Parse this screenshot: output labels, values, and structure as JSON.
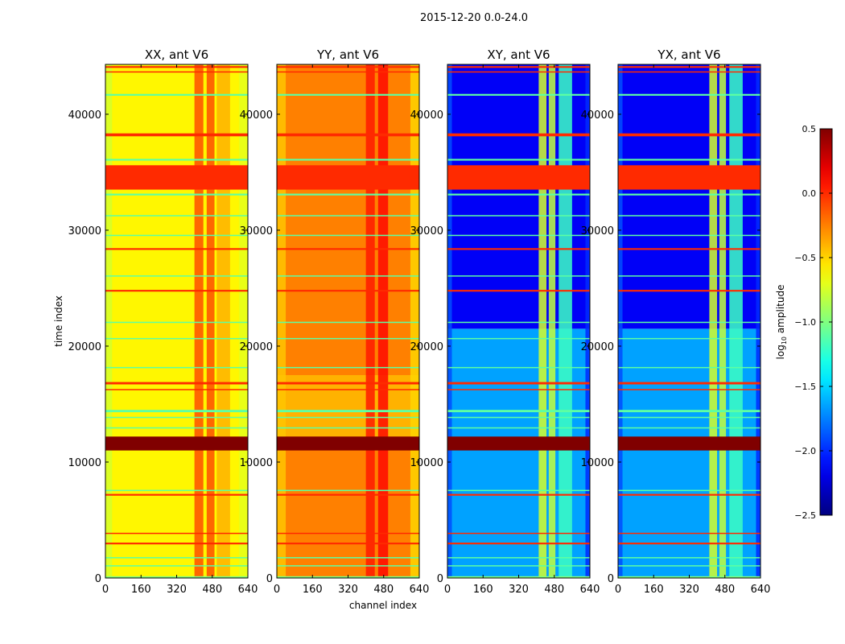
{
  "chart_data": {
    "type": "heatmap",
    "suptitle": "2015-12-20 0.0-24.0",
    "xlabel": "channel index",
    "ylabel": "time index",
    "xlim": [
      0,
      640
    ],
    "ylim": [
      0,
      44300
    ],
    "xticks": [
      "0",
      "160",
      "320",
      "480",
      "640"
    ],
    "xtick_values": [
      0,
      160,
      320,
      480,
      640
    ],
    "yticks": [
      "0",
      "10000",
      "20000",
      "30000",
      "40000"
    ],
    "ytick_values": [
      0,
      10000,
      20000,
      30000,
      40000
    ],
    "colorbar": {
      "label_main": "log",
      "label_sub": "10",
      "label_rest": " amplitude",
      "range": [
        -2.5,
        0.5
      ],
      "colormap": "jet",
      "ticks": [
        "0.5",
        "0.0",
        "−0.5",
        "−1.0",
        "−1.5",
        "−2.0",
        "−2.5"
      ],
      "tick_values": [
        0.5,
        0.0,
        -0.5,
        -1.0,
        -1.5,
        -2.0,
        -2.5
      ]
    },
    "shared_row_bands": [
      {
        "t0": 33500,
        "t1": 35600,
        "value": 0.0
      },
      {
        "t0": 11000,
        "t1": 12200,
        "value": 0.5
      },
      {
        "t0": 44000,
        "t1": 44150,
        "value": 0.0
      },
      {
        "t0": 43600,
        "t1": 43700,
        "value": 0.0
      },
      {
        "t0": 41600,
        "t1": 41750,
        "value": -1.1
      },
      {
        "t0": 38100,
        "t1": 38350,
        "value": 0.0
      },
      {
        "t0": 36000,
        "t1": 36150,
        "value": -1.1
      },
      {
        "t0": 33000,
        "t1": 33150,
        "value": -1.1
      },
      {
        "t0": 31200,
        "t1": 31300,
        "value": -1.1
      },
      {
        "t0": 29500,
        "t1": 29600,
        "value": -1.1
      },
      {
        "t0": 28300,
        "t1": 28450,
        "value": 0.0
      },
      {
        "t0": 26000,
        "t1": 26100,
        "value": -1.1
      },
      {
        "t0": 24700,
        "t1": 24850,
        "value": 0.0
      },
      {
        "t0": 22000,
        "t1": 22100,
        "value": -1.1
      },
      {
        "t0": 20600,
        "t1": 20700,
        "value": -1.1
      },
      {
        "t0": 18100,
        "t1": 18200,
        "value": -1.1
      },
      {
        "t0": 16700,
        "t1": 16900,
        "value": 0.0
      },
      {
        "t0": 16200,
        "t1": 16300,
        "value": 0.0
      },
      {
        "t0": 14300,
        "t1": 14500,
        "value": -1.1
      },
      {
        "t0": 13800,
        "t1": 13900,
        "value": -1.1
      },
      {
        "t0": 12900,
        "t1": 13000,
        "value": -1.1
      },
      {
        "t0": 7500,
        "t1": 7600,
        "value": -1.1
      },
      {
        "t0": 7100,
        "t1": 7250,
        "value": 0.0
      },
      {
        "t0": 3800,
        "t1": 3900,
        "value": 0.0
      },
      {
        "t0": 2900,
        "t1": 3050,
        "value": 0.0
      },
      {
        "t0": 1700,
        "t1": 1800,
        "value": -1.1
      },
      {
        "t0": 1000,
        "t1": 1100,
        "value": -1.1
      },
      {
        "t0": 0,
        "t1": 150,
        "value": -1.0
      }
    ],
    "panels": [
      {
        "title": "XX, ant V6",
        "show_ylabel": true,
        "show_xlabel": false,
        "time_regions": [
          {
            "t0": 0,
            "t1": 44300,
            "value": -0.6
          }
        ],
        "channel_bands": [
          {
            "c0": 0,
            "c1": 30,
            "value": -0.75
          },
          {
            "c0": 400,
            "c1": 440,
            "value": -0.1
          },
          {
            "c0": 455,
            "c1": 490,
            "value": -0.1
          },
          {
            "c0": 500,
            "c1": 560,
            "value": -0.4
          },
          {
            "c0": 600,
            "c1": 640,
            "value": -0.7
          }
        ]
      },
      {
        "title": "YY, ant V6",
        "show_ylabel": false,
        "show_xlabel": true,
        "time_regions": [
          {
            "t0": 0,
            "t1": 44300,
            "value": -0.25
          },
          {
            "t0": 12200,
            "t1": 17500,
            "value": -0.4
          }
        ],
        "channel_bands": [
          {
            "c0": 0,
            "c1": 40,
            "value": -0.45
          },
          {
            "c0": 400,
            "c1": 440,
            "value": 0.05
          },
          {
            "c0": 455,
            "c1": 500,
            "value": 0.1
          },
          {
            "c0": 600,
            "c1": 640,
            "value": -0.5
          }
        ]
      },
      {
        "title": "XY, ant V6",
        "show_ylabel": false,
        "show_xlabel": false,
        "time_regions": [
          {
            "t0": 0,
            "t1": 21500,
            "value": -1.65
          },
          {
            "t0": 21500,
            "t1": 44300,
            "value": -2.15
          }
        ],
        "channel_bands": [
          {
            "c0": 0,
            "c1": 20,
            "value": -1.9
          },
          {
            "c0": 410,
            "c1": 445,
            "value": -0.75
          },
          {
            "c0": 455,
            "c1": 485,
            "value": -0.8
          },
          {
            "c0": 500,
            "c1": 560,
            "value": -1.2
          },
          {
            "c0": 620,
            "c1": 640,
            "value": -2.0
          }
        ]
      },
      {
        "title": "YX, ant V6",
        "show_ylabel": false,
        "show_xlabel": false,
        "time_regions": [
          {
            "t0": 0,
            "t1": 21500,
            "value": -1.65
          },
          {
            "t0": 21500,
            "t1": 44300,
            "value": -2.15
          }
        ],
        "channel_bands": [
          {
            "c0": 0,
            "c1": 20,
            "value": -1.9
          },
          {
            "c0": 410,
            "c1": 445,
            "value": -0.75
          },
          {
            "c0": 455,
            "c1": 485,
            "value": -0.8
          },
          {
            "c0": 500,
            "c1": 560,
            "value": -1.2
          },
          {
            "c0": 620,
            "c1": 640,
            "value": -2.0
          }
        ]
      }
    ]
  }
}
